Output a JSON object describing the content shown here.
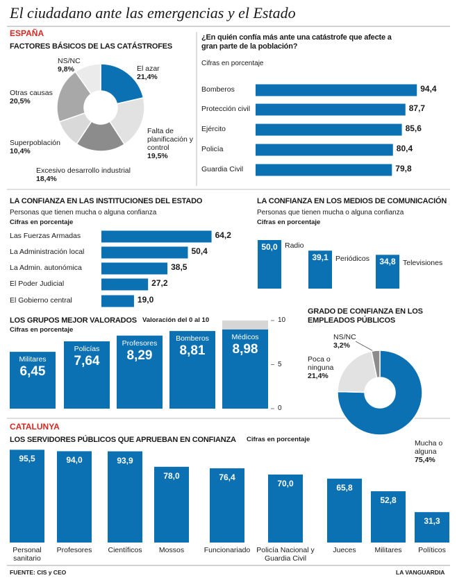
{
  "header": {
    "title": "El ciudadano ante las emergencias y el Estado",
    "source": "FUENTE: CIS y CEO",
    "publisher": "LA VANGUARDIA"
  },
  "sections": [
    "ESPAÑA",
    "CATALUNYA"
  ],
  "chart_data": [
    {
      "type": "pie",
      "donut": true,
      "title": "FACTORES BÁSICOS DE LAS CATÁSTROFES",
      "categories": [
        "El azar",
        "Falta de planificación y control",
        "Excesivo desarrollo industrial",
        "Superpoblación",
        "Otras causas",
        "NS/NC"
      ],
      "values": [
        21.4,
        19.5,
        18.4,
        10.4,
        20.5,
        9.8
      ],
      "value_labels": [
        "21,4%",
        "19,5%",
        "18,4%",
        "10,4%",
        "20,5%",
        "9,8%"
      ],
      "colors": [
        "#0b71b3",
        "#e2e2e2",
        "#8c8c8c",
        "#d9d9d9",
        "#a8a8a8",
        "#ebebeb"
      ]
    },
    {
      "type": "hbar",
      "title": "¿En quién confía más ante una catástrofe que afecte a gran parte de la población?",
      "subtitle": "Cifras en porcentaje",
      "categories": [
        "Bomberos",
        "Protección civil",
        "Ejército",
        "Policía",
        "Guardia Civil"
      ],
      "values": [
        94.4,
        87.7,
        85.6,
        80.4,
        79.8
      ],
      "value_labels": [
        "94,4",
        "87,7",
        "85,6",
        "80,4",
        "79,8"
      ],
      "color": "#0b71b3"
    },
    {
      "type": "hbar",
      "title": "LA CONFIANZA EN LAS INSTITUCIONES DEL ESTADO",
      "subtitle": "Personas que tienen mucha o alguna confianza",
      "note": "Cifras en porcentaje",
      "categories": [
        "Las Fuerzas Armadas",
        "La Administración local",
        "La Admin. autonómica",
        "El Poder Judicial",
        "El Gobierno central"
      ],
      "values": [
        64.2,
        50.4,
        38.5,
        27.2,
        19.0
      ],
      "value_labels": [
        "64,2",
        "50,4",
        "38,5",
        "27,2",
        "19,0"
      ],
      "color": "#0b71b3"
    },
    {
      "type": "bar",
      "title": "LA CONFIANZA EN LOS MEDIOS DE COMUNICACIÓN",
      "subtitle": "Personas que tienen mucha o alguna confianza",
      "note": "Cifras en porcentaje",
      "categories": [
        "Radio",
        "Periódicos",
        "Televisiones"
      ],
      "values": [
        50.0,
        39.1,
        34.8
      ],
      "value_labels": [
        "50,0",
        "39,1",
        "34,8"
      ],
      "color": "#0b71b3"
    },
    {
      "type": "bar",
      "title": "LOS GRUPOS MEJOR VALORADOS",
      "scale_note": "Valoración del 0 al 10",
      "note": "Cifras en porcentaje",
      "categories": [
        "Militares",
        "Policías",
        "Profesores",
        "Bomberos",
        "Médicos"
      ],
      "values": [
        6.45,
        7.64,
        8.29,
        8.81,
        8.98
      ],
      "value_labels": [
        "6,45",
        "7,64",
        "8,29",
        "8,81",
        "8,98"
      ],
      "color": "#0b71b3",
      "ylim": [
        0,
        10
      ],
      "yticks": [
        0,
        5,
        10
      ]
    },
    {
      "type": "pie",
      "donut": true,
      "title": "GRADO DE CONFIANZA EN LOS EMPLEADOS PÚBLICOS",
      "categories": [
        "Mucha o alguna",
        "Poca o ninguna",
        "NS/NC"
      ],
      "values": [
        75.4,
        21.4,
        3.2
      ],
      "value_labels": [
        "75,4%",
        "21,4%",
        "3,2%"
      ],
      "colors": [
        "#0b71b3",
        "#e2e2e2",
        "#8c8c8c"
      ]
    },
    {
      "type": "bar",
      "title": "LOS SERVIDORES PÚBLICOS QUE APRUEBAN EN CONFIANZA",
      "note": "Cifras en porcentaje",
      "categories": [
        "Personal sanitario",
        "Profesores",
        "Científicos",
        "Mossos",
        "Funcionariado",
        "Policía Nacional y Guardia Civil",
        "Jueces",
        "Militares",
        "Políticos"
      ],
      "values": [
        95.5,
        94.0,
        93.9,
        78.0,
        76.4,
        70.0,
        65.8,
        52.8,
        31.3
      ],
      "value_labels": [
        "95,5",
        "94,0",
        "93,9",
        "78,0",
        "76,4",
        "70,0",
        "65,8",
        "52,8",
        "31,3"
      ],
      "color": "#0b71b3"
    }
  ]
}
